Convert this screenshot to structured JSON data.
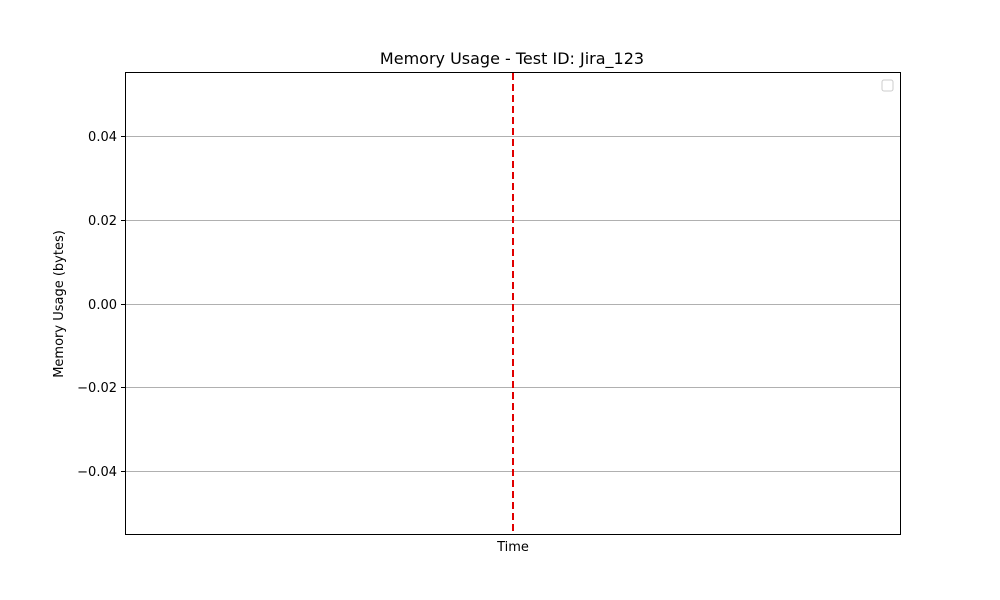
{
  "chart_data": {
    "type": "line",
    "title": "Memory Usage - Test ID: Jira_123",
    "xlabel": "Time",
    "ylabel": "Memory Usage (bytes)",
    "ylim": [
      -0.055,
      0.055
    ],
    "yticks": [
      0.04,
      0.02,
      0.0,
      -0.02,
      -0.04
    ],
    "ytick_labels": [
      "0.04",
      "0.02",
      "0.00",
      "−0.02",
      "−0.04"
    ],
    "grid": "horizontal",
    "legend": {
      "placement": "top-right",
      "entries": []
    },
    "series": [],
    "vertical_line": {
      "position": "center",
      "style": "dashed",
      "color": "#e00000"
    },
    "colors": {
      "grid": "#b0b0b0",
      "axes": "#000000",
      "vline": "#e00000"
    }
  }
}
